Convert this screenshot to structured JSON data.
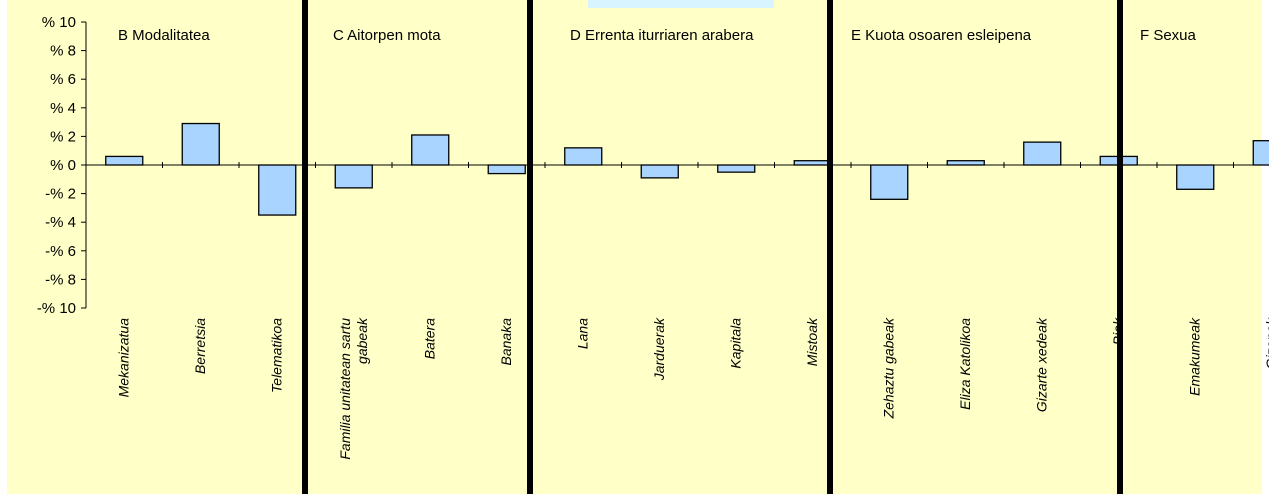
{
  "chart_data": {
    "type": "bar",
    "ylim": [
      -10,
      10
    ],
    "y_ticks": [
      {
        "value": 10,
        "label": "% 10"
      },
      {
        "value": 8,
        "label": "% 8"
      },
      {
        "value": 6,
        "label": "% 6"
      },
      {
        "value": 4,
        "label": "% 4"
      },
      {
        "value": 2,
        "label": "% 2"
      },
      {
        "value": 0,
        "label": "% 0"
      },
      {
        "value": -2,
        "label": "-% 2"
      },
      {
        "value": -4,
        "label": "-% 4"
      },
      {
        "value": -6,
        "label": "-% 6"
      },
      {
        "value": -8,
        "label": "-% 8"
      },
      {
        "value": -10,
        "label": "-% 10"
      }
    ],
    "grid": false,
    "groups": [
      {
        "title": "B Modalitatea",
        "categories": [
          {
            "label": "Mekanizatua",
            "value": 0.6
          },
          {
            "label": "Berretsia",
            "value": 2.9
          },
          {
            "label": "Telematikoa",
            "value": -3.5
          }
        ]
      },
      {
        "title": "C Aitorpen mota",
        "categories": [
          {
            "label": "Familia unitatean sartu gabeak",
            "value": -1.6
          },
          {
            "label": "Batera",
            "value": 2.1
          },
          {
            "label": "Banaka",
            "value": -0.6
          }
        ]
      },
      {
        "title": "D Errenta iturriaren arabera",
        "categories": [
          {
            "label": "Lana",
            "value": 1.2
          },
          {
            "label": "Jarduerak",
            "value": -0.9
          },
          {
            "label": "Kapitala",
            "value": -0.5
          },
          {
            "label": "Mistoak",
            "value": 0.3
          }
        ]
      },
      {
        "title": "E Kuota osoaren esleipena",
        "categories": [
          {
            "label": "Zehaztu gabeak",
            "value": -2.4
          },
          {
            "label": "Eliza Katolikoa",
            "value": 0.3
          },
          {
            "label": "Gizarte xedeak",
            "value": 1.6
          },
          {
            "label": "Biak",
            "value": 0.6
          }
        ]
      },
      {
        "title": "F Sexua",
        "categories": [
          {
            "label": "Emakumeak",
            "value": -1.7
          },
          {
            "label": "Gizonak",
            "value": 1.7
          }
        ]
      }
    ],
    "colors": {
      "background": "#ffffc8",
      "bar_fill": "#a8d4ff",
      "bar_stroke": "#000000",
      "separator": "#000000",
      "top_highlight": "#d8f4ff"
    }
  }
}
